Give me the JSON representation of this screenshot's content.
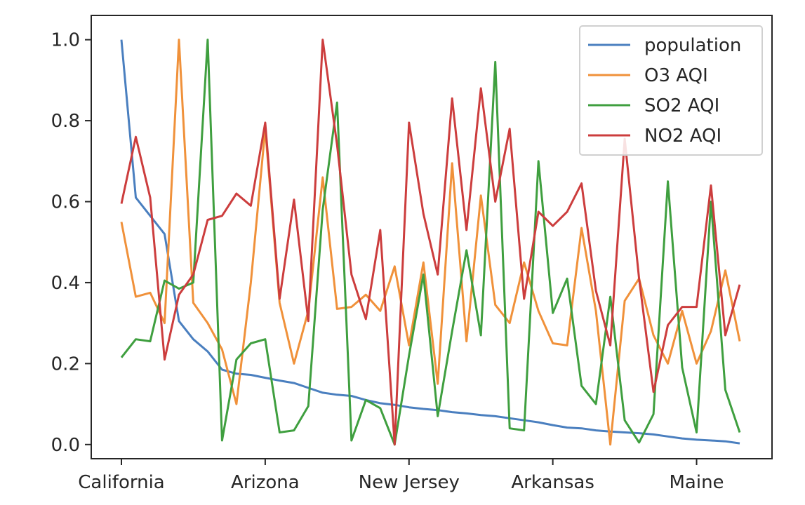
{
  "chart_data": {
    "type": "line",
    "x": [
      "California",
      "",
      "",
      "",
      "",
      "",
      "",
      "",
      "",
      "",
      "Arizona",
      "",
      "",
      "",
      "",
      "",
      "",
      "",
      "",
      "",
      "New Jersey",
      "",
      "",
      "",
      "",
      "",
      "",
      "",
      "",
      "",
      "Arkansas",
      "",
      "",
      "",
      "",
      "",
      "",
      "",
      "",
      "",
      "Maine",
      "",
      "",
      ""
    ],
    "xticks": [
      "California",
      "Arizona",
      "New Jersey",
      "Arkansas",
      "Maine"
    ],
    "xtick_indices": [
      0,
      10,
      20,
      30,
      40
    ],
    "ylim": [
      -0.035,
      1.06
    ],
    "yticks": [
      "0.0",
      "0.2",
      "0.4",
      "0.6",
      "0.8",
      "1.0"
    ],
    "ytick_values": [
      0.0,
      0.2,
      0.4,
      0.6,
      0.8,
      1.0
    ],
    "grid": false,
    "legend_position": "top-right",
    "series": [
      {
        "name": "population",
        "color": "#4a7fbf",
        "values": [
          1.0,
          0.61,
          0.565,
          0.52,
          0.305,
          0.26,
          0.23,
          0.185,
          0.175,
          0.172,
          0.165,
          0.158,
          0.152,
          0.14,
          0.128,
          0.123,
          0.12,
          0.11,
          0.102,
          0.098,
          0.092,
          0.088,
          0.085,
          0.08,
          0.077,
          0.073,
          0.07,
          0.065,
          0.06,
          0.055,
          0.048,
          0.042,
          0.04,
          0.035,
          0.032,
          0.03,
          0.028,
          0.025,
          0.02,
          0.015,
          0.012,
          0.01,
          0.008,
          0.003
        ]
      },
      {
        "name": "O3 AQI",
        "color": "#f0913a",
        "values": [
          0.55,
          0.365,
          0.375,
          0.3,
          1.0,
          0.35,
          0.3,
          0.235,
          0.1,
          0.4,
          0.78,
          0.35,
          0.2,
          0.33,
          0.66,
          0.335,
          0.34,
          0.37,
          0.33,
          0.44,
          0.245,
          0.45,
          0.15,
          0.695,
          0.255,
          0.615,
          0.345,
          0.3,
          0.45,
          0.33,
          0.25,
          0.245,
          0.535,
          0.33,
          0.0,
          0.355,
          0.41,
          0.27,
          0.2,
          0.33,
          0.2,
          0.28,
          0.43,
          0.255
        ]
      },
      {
        "name": "SO2 AQI",
        "color": "#3f9f3f",
        "values": [
          0.215,
          0.26,
          0.255,
          0.405,
          0.385,
          0.4,
          1.0,
          0.01,
          0.21,
          0.25,
          0.26,
          0.03,
          0.035,
          0.095,
          0.58,
          0.845,
          0.01,
          0.11,
          0.09,
          0.0,
          0.22,
          0.42,
          0.07,
          0.28,
          0.48,
          0.27,
          0.945,
          0.04,
          0.035,
          0.7,
          0.325,
          0.41,
          0.145,
          0.1,
          0.365,
          0.06,
          0.005,
          0.075,
          0.65,
          0.19,
          0.03,
          0.6,
          0.135,
          0.03
        ]
      },
      {
        "name": "NO2 AQI",
        "color": "#cc3d3d",
        "values": [
          0.595,
          0.76,
          0.61,
          0.21,
          0.37,
          0.42,
          0.555,
          0.565,
          0.62,
          0.59,
          0.795,
          0.36,
          0.605,
          0.305,
          1.0,
          0.74,
          0.42,
          0.31,
          0.53,
          0.0,
          0.795,
          0.57,
          0.42,
          0.855,
          0.53,
          0.88,
          0.6,
          0.78,
          0.36,
          0.575,
          0.54,
          0.575,
          0.645,
          0.38,
          0.245,
          0.755,
          0.41,
          0.13,
          0.295,
          0.34,
          0.34,
          0.64,
          0.27,
          0.395
        ]
      }
    ]
  }
}
